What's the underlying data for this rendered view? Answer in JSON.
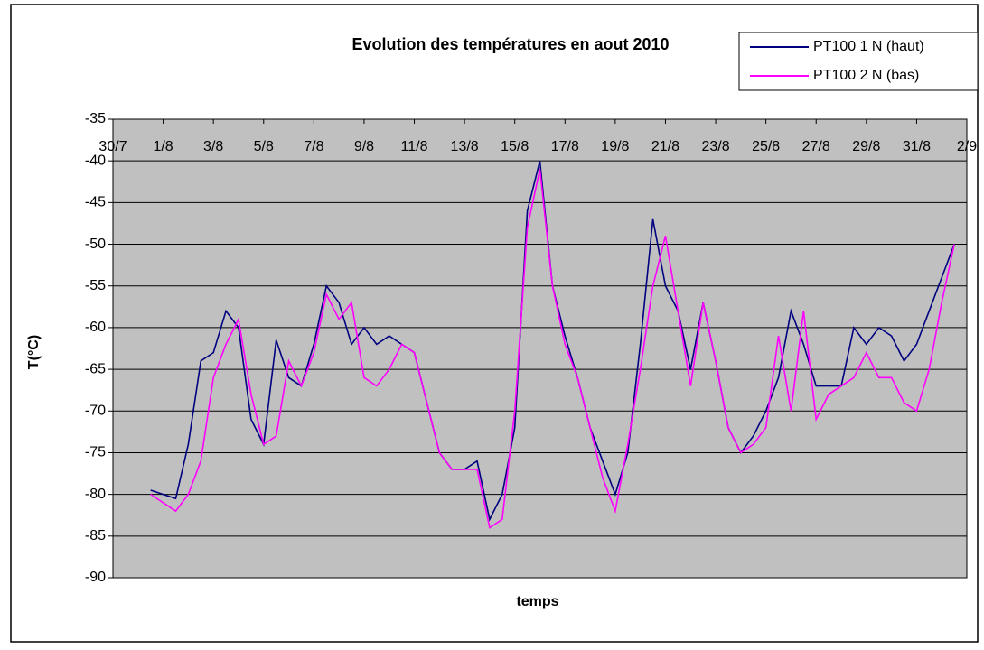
{
  "chart_data": {
    "type": "line",
    "title": "Evolution des températures en aout 2010",
    "xlabel": "temps",
    "ylabel": "T(°C)",
    "x": [
      0.5,
      1,
      1.5,
      2,
      2.5,
      3,
      3.5,
      4,
      4.5,
      5,
      5.5,
      6,
      6.5,
      7,
      7.5,
      8,
      8.5,
      9,
      9.5,
      10,
      10.5,
      11,
      11.5,
      12,
      12.5,
      13,
      13.5,
      14,
      14.5,
      15,
      15.5,
      16,
      16.5,
      17,
      17.5,
      18,
      18.5,
      19,
      19.5,
      20,
      20.5,
      21,
      21.5,
      22,
      22.5,
      23,
      23.5,
      24,
      24.5,
      25,
      25.5,
      26,
      26.5,
      27,
      27.5,
      28,
      28.5,
      29,
      29.5,
      30,
      30.5,
      31,
      31.5,
      32,
      32.5
    ],
    "series": [
      {
        "name": "PT100 1 N (haut)",
        "color": "#000080",
        "values": [
          -79.5,
          -80,
          -80.5,
          -74,
          -64,
          -63,
          -58,
          -60,
          -71,
          -74,
          -61.5,
          -66,
          -67,
          -62,
          -55,
          -57,
          -62,
          -60,
          -62,
          -61,
          -62,
          -63,
          -69,
          -75,
          -77,
          -77,
          -76,
          -83,
          -80,
          -72,
          -46,
          -40,
          -55,
          -61,
          -66,
          -72,
          -76,
          -80,
          -75,
          -62,
          -47,
          -55,
          -58,
          -65,
          -57,
          -64,
          -72,
          -75,
          -73,
          -70,
          -66,
          -58,
          -62,
          -67,
          -67,
          -67,
          -60,
          -62,
          -60,
          -61,
          -64,
          -62,
          -58,
          -54,
          -50
        ]
      },
      {
        "name": "PT100 2 N (bas)",
        "color": "#ff00ff",
        "values": [
          -80,
          -81,
          -82,
          -80,
          -76,
          -66,
          -62,
          -59,
          -68,
          -74,
          -73,
          -64,
          -67,
          -63,
          -56,
          -59,
          -57,
          -66,
          -67,
          -65,
          -62,
          -63,
          -69,
          -75,
          -77,
          -77,
          -77,
          -84,
          -83,
          -70,
          -48,
          -41,
          -55,
          -62,
          -66,
          -72,
          -78,
          -82,
          -74,
          -65,
          -55,
          -49,
          -58,
          -67,
          -57,
          -64,
          -72,
          -75,
          -74,
          -72,
          -61,
          -70,
          -58,
          -71,
          -68,
          -67,
          -66,
          -63,
          -66,
          -66,
          -69,
          -70,
          -65,
          -57,
          -50
        ]
      }
    ],
    "xlim": [
      -1,
      33
    ],
    "xticks": [
      {
        "value": -1,
        "label": "30/7"
      },
      {
        "value": 1,
        "label": "1/8"
      },
      {
        "value": 3,
        "label": "3/8"
      },
      {
        "value": 5,
        "label": "5/8"
      },
      {
        "value": 7,
        "label": "7/8"
      },
      {
        "value": 9,
        "label": "9/8"
      },
      {
        "value": 11,
        "label": "11/8"
      },
      {
        "value": 13,
        "label": "13/8"
      },
      {
        "value": 15,
        "label": "15/8"
      },
      {
        "value": 17,
        "label": "17/8"
      },
      {
        "value": 19,
        "label": "19/8"
      },
      {
        "value": 21,
        "label": "21/8"
      },
      {
        "value": 23,
        "label": "23/8"
      },
      {
        "value": 25,
        "label": "25/8"
      },
      {
        "value": 27,
        "label": "27/8"
      },
      {
        "value": 29,
        "label": "29/8"
      },
      {
        "value": 31,
        "label": "31/8"
      },
      {
        "value": 33,
        "label": "2/9"
      }
    ],
    "ylim": [
      -90,
      -35
    ],
    "yticks": [
      -35,
      -40,
      -45,
      -50,
      -55,
      -60,
      -65,
      -70,
      -75,
      -80,
      -85,
      -90
    ],
    "grid": true,
    "legend": "top-right"
  }
}
